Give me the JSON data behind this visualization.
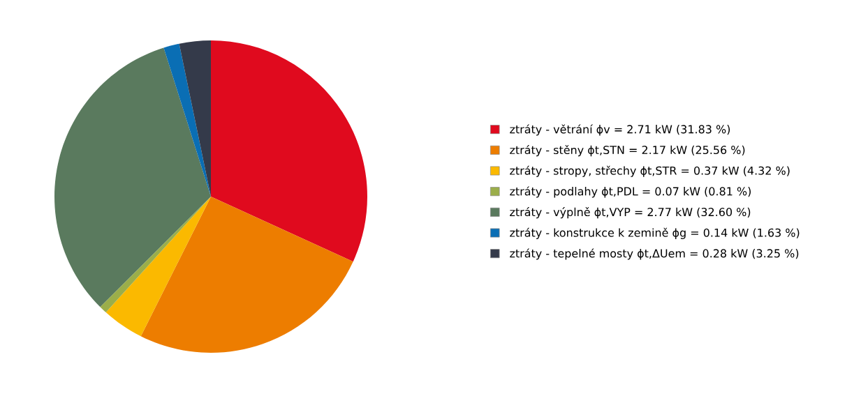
{
  "chart_data": {
    "type": "pie",
    "categories": [
      "ztráty - větrání ϕv = 2.71 kW (31.83 %)",
      "ztráty - stěny ϕt,STN = 2.17 kW (25.56 %)",
      "ztráty - stropy, střechy ϕt,STR = 0.37 kW (4.32 %)",
      "ztráty - podlahy ϕt,PDL = 0.07 kW (0.81 %)",
      "ztráty - výplně ϕt,VYP = 2.77 kW (32.60 %)",
      "ztráty - konstrukce k zemině ϕg = 0.14 kW (1.63 %)",
      "ztráty - tepelné mosty ϕt,ΔUem = 0.28 kW (3.25 %)"
    ],
    "values": [
      31.83,
      25.56,
      4.32,
      0.81,
      32.6,
      1.63,
      3.25
    ],
    "colors": [
      "#e00a1e",
      "#ed7d00",
      "#fbb900",
      "#9bae4a",
      "#5a7a5e",
      "#0a6eb4",
      "#343a4a"
    ],
    "legend": "right"
  }
}
